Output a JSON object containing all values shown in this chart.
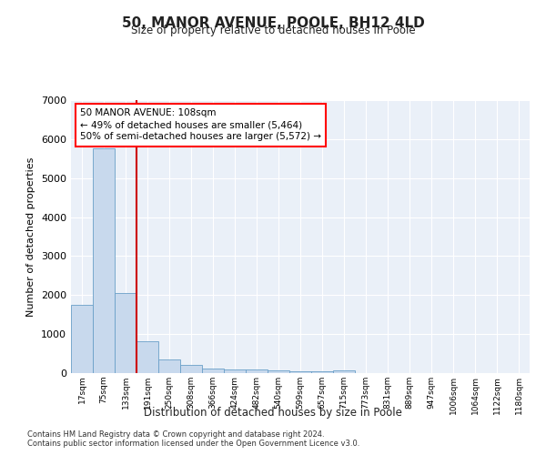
{
  "title": "50, MANOR AVENUE, POOLE, BH12 4LD",
  "subtitle": "Size of property relative to detached houses in Poole",
  "xlabel": "Distribution of detached houses by size in Poole",
  "ylabel": "Number of detached properties",
  "footnote1": "Contains HM Land Registry data © Crown copyright and database right 2024.",
  "footnote2": "Contains public sector information licensed under the Open Government Licence v3.0.",
  "annotation_line1": "50 MANOR AVENUE: 108sqm",
  "annotation_line2": "← 49% of detached houses are smaller (5,464)",
  "annotation_line3": "50% of semi-detached houses are larger (5,572) →",
  "bar_color": "#c8d9ed",
  "bar_edge_color": "#6a9fc8",
  "background_color": "#eaf0f8",
  "grid_color": "#ffffff",
  "vline_color": "#cc0000",
  "vline_position": 2.5,
  "categories": [
    "17sqm",
    "75sqm",
    "133sqm",
    "191sqm",
    "250sqm",
    "308sqm",
    "366sqm",
    "424sqm",
    "482sqm",
    "540sqm",
    "599sqm",
    "657sqm",
    "715sqm",
    "773sqm",
    "831sqm",
    "889sqm",
    "947sqm",
    "1006sqm",
    "1064sqm",
    "1122sqm",
    "1180sqm"
  ],
  "values": [
    1760,
    5760,
    2060,
    820,
    360,
    200,
    120,
    95,
    90,
    75,
    55,
    45,
    75,
    0,
    0,
    0,
    0,
    0,
    0,
    0,
    0
  ],
  "ylim": [
    0,
    7000
  ],
  "yticks": [
    0,
    1000,
    2000,
    3000,
    4000,
    5000,
    6000,
    7000
  ]
}
